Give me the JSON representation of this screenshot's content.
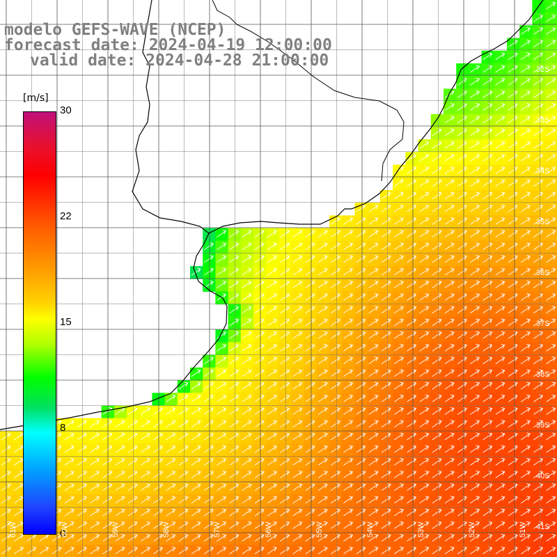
{
  "title": {
    "line1": "modelo GEFS-WAVE (NCEP)",
    "line2": "forecast date: 2024-04-19 12:00:00",
    "line3": "valid date: 2024-04-28 21:00:00"
  },
  "colorbar": {
    "unit": "[m/s]",
    "ticks": [
      "30",
      "22",
      "15",
      "8",
      "0"
    ]
  },
  "lat_labels": [
    "32S",
    "33S",
    "34S",
    "35S",
    "36S",
    "37S",
    "38S",
    "39S",
    "40S",
    "41S"
  ],
  "lon_labels": [
    "61W",
    "60W",
    "59W",
    "58W",
    "57W",
    "56W",
    "55W",
    "54W",
    "53W",
    "52W",
    "51W"
  ],
  "colors": {
    "land": "#ffffff",
    "grid": "#000000",
    "coast": "#000000",
    "arrows": "#ffffff"
  }
}
